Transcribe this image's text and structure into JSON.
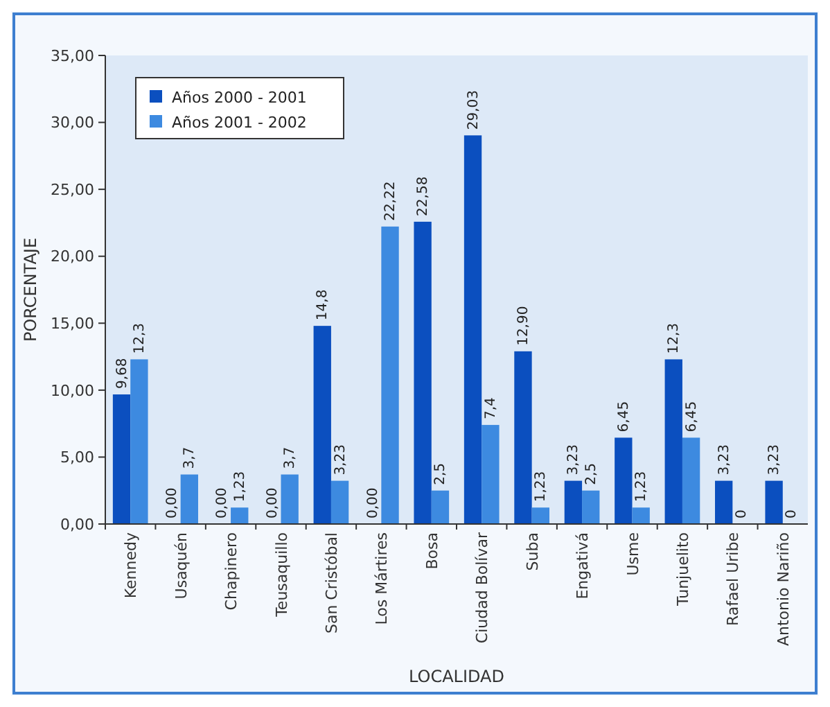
{
  "chart_data": {
    "type": "bar",
    "xlabel": "LOCALIDAD",
    "ylabel": "PORCENTAJE",
    "categories": [
      "Kennedy",
      "Usaquén",
      "Chapinero",
      "Teusaquillo",
      "San Cristóbal",
      "Los Mártires",
      "Bosa",
      "Ciudad Bolívar",
      "Suba",
      "Engativá",
      "Usme",
      "Tunjuelito",
      "Rafael Uribe",
      "Antonio Nariño"
    ],
    "series": [
      {
        "name": "Años 2000 - 2001",
        "color": "#0b4fbf",
        "values": [
          9.68,
          0,
          0,
          0,
          14.8,
          0,
          22.58,
          29.03,
          12.9,
          3.23,
          6.45,
          12.3,
          3.23,
          3.23
        ],
        "value_labels": [
          "9,68",
          "0,00",
          "0,00",
          "0,00",
          "14,8",
          "0,00",
          "22,58",
          "29,03",
          "12,90",
          "3,23",
          "6,45",
          "12,3",
          "3,23",
          "3,23"
        ]
      },
      {
        "name": "Años 2001 - 2002",
        "color": "#3d8ae0",
        "values": [
          12.3,
          3.7,
          1.23,
          3.7,
          3.23,
          22.22,
          2.5,
          7.4,
          1.23,
          2.5,
          1.23,
          6.45,
          0,
          0
        ],
        "value_labels": [
          "12,3",
          "3,7",
          "1,23",
          "3,7",
          "3,23",
          "22,22",
          "2,5",
          "7,4",
          "1,23",
          "2,5",
          "1,23",
          "6,45",
          "0",
          "0"
        ]
      }
    ],
    "ylim": [
      0,
      35
    ],
    "yticks": [
      {
        "value": 0,
        "label": "0,00"
      },
      {
        "value": 5,
        "label": "5,00"
      },
      {
        "value": 10,
        "label": "10,00"
      },
      {
        "value": 15,
        "label": "15,00"
      },
      {
        "value": 20,
        "label": "20,00"
      },
      {
        "value": 25,
        "label": "25,00"
      },
      {
        "value": 30,
        "label": "30,00"
      },
      {
        "value": 35,
        "label": "35,00"
      }
    ],
    "grid": false,
    "legend": "top left"
  }
}
